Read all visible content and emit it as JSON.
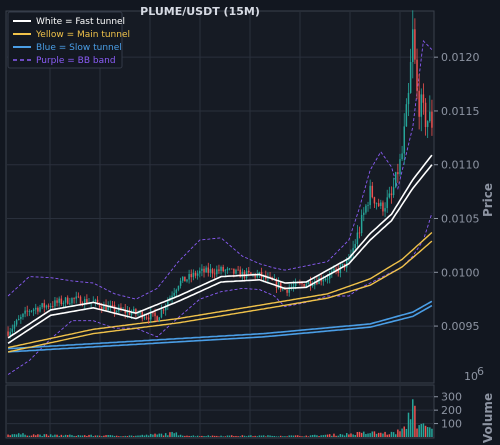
{
  "chart_data": {
    "type": "candlestick",
    "title": "PLUME/USDT (15M)",
    "price_axis": {
      "label": "Price",
      "ylim": [
        0.00898,
        0.01242
      ],
      "ticks": [
        0.0095,
        0.01,
        0.0105,
        0.011,
        0.0115,
        0.012
      ],
      "tick_labels": [
        "0.0095",
        "0.0100",
        "0.0105",
        "0.0110",
        "0.0115",
        "0.0120"
      ]
    },
    "volume_axis": {
      "label": "Volume",
      "multiplier": "10",
      "multiplier_exp": "6",
      "ylim": [
        0,
        380
      ],
      "ticks": [
        100,
        200,
        300
      ],
      "tick_labels": [
        "100",
        "200",
        "300"
      ]
    },
    "legend": {
      "placement": "top-left",
      "entries": [
        {
          "label": "White = Fast tunnel",
          "color": "#ffffff",
          "dashed": false
        },
        {
          "label": "Yellow = Main tunnel",
          "color": "#f0c24a",
          "dashed": false
        },
        {
          "label": "Blue = Slow tunnel",
          "color": "#4a9ee6",
          "dashed": false
        },
        {
          "label": "Purple = BB band",
          "color": "#8a5cf6",
          "dashed": true
        }
      ]
    },
    "colors": {
      "up": "#26a69a",
      "down": "#ef5350",
      "background": "#121720",
      "grid": "#2a303c"
    },
    "grid": true,
    "x_count": 200,
    "close_anchors": [
      [
        0,
        0.00945
      ],
      [
        10,
        0.00965
      ],
      [
        20,
        0.0097
      ],
      [
        30,
        0.00975
      ],
      [
        40,
        0.00972
      ],
      [
        50,
        0.00965
      ],
      [
        60,
        0.00962
      ],
      [
        70,
        0.00958
      ],
      [
        80,
        0.0099
      ],
      [
        90,
        0.01
      ],
      [
        100,
        0.01002
      ],
      [
        110,
        0.00998
      ],
      [
        118,
        0.00997
      ],
      [
        125,
        0.0099
      ],
      [
        130,
        0.00984
      ],
      [
        140,
        0.0099
      ],
      [
        150,
        0.00996
      ],
      [
        155,
        0.01002
      ],
      [
        160,
        0.0101
      ],
      [
        165,
        0.0104
      ],
      [
        170,
        0.01075
      ],
      [
        175,
        0.0106
      ],
      [
        180,
        0.0107
      ],
      [
        185,
        0.0111
      ],
      [
        188,
        0.0116
      ],
      [
        190,
        0.0122
      ],
      [
        192,
        0.01165
      ],
      [
        195,
        0.01145
      ],
      [
        199,
        0.0114
      ]
    ],
    "volume_anchors": [
      [
        0,
        25
      ],
      [
        20,
        15
      ],
      [
        60,
        10
      ],
      [
        78,
        30
      ],
      [
        85,
        10
      ],
      [
        140,
        10
      ],
      [
        155,
        20
      ],
      [
        170,
        35
      ],
      [
        180,
        30
      ],
      [
        186,
        60
      ],
      [
        188,
        150
      ],
      [
        190,
        330
      ],
      [
        192,
        120
      ],
      [
        195,
        80
      ],
      [
        199,
        60
      ]
    ],
    "fast_tunnel_upper": [
      [
        0,
        0.00939
      ],
      [
        20,
        0.00965
      ],
      [
        40,
        0.00972
      ],
      [
        60,
        0.00962
      ],
      [
        80,
        0.00978
      ],
      [
        100,
        0.00996
      ],
      [
        118,
        0.00998
      ],
      [
        130,
        0.0099
      ],
      [
        140,
        0.00991
      ],
      [
        160,
        0.01013
      ],
      [
        170,
        0.01036
      ],
      [
        180,
        0.01054
      ],
      [
        190,
        0.01086
      ],
      [
        199,
        0.01109
      ]
    ],
    "fast_tunnel_lower": [
      [
        0,
        0.00934
      ],
      [
        20,
        0.0096
      ],
      [
        40,
        0.00967
      ],
      [
        60,
        0.00957
      ],
      [
        80,
        0.00973
      ],
      [
        100,
        0.00991
      ],
      [
        118,
        0.00993
      ],
      [
        130,
        0.00985
      ],
      [
        140,
        0.00986
      ],
      [
        160,
        0.01008
      ],
      [
        170,
        0.0103
      ],
      [
        180,
        0.01048
      ],
      [
        190,
        0.01078
      ],
      [
        199,
        0.011
      ]
    ],
    "main_tunnel_upper": [
      [
        0,
        0.0093
      ],
      [
        40,
        0.00947
      ],
      [
        80,
        0.00957
      ],
      [
        120,
        0.0097
      ],
      [
        150,
        0.0098
      ],
      [
        170,
        0.00994
      ],
      [
        185,
        0.01012
      ],
      [
        199,
        0.01037
      ]
    ],
    "main_tunnel_lower": [
      [
        0,
        0.00926
      ],
      [
        40,
        0.00943
      ],
      [
        80,
        0.00953
      ],
      [
        120,
        0.00966
      ],
      [
        150,
        0.00976
      ],
      [
        170,
        0.00988
      ],
      [
        185,
        0.01005
      ],
      [
        199,
        0.01029
      ]
    ],
    "slow_tunnel_upper": [
      [
        0,
        0.00929
      ],
      [
        60,
        0.00936
      ],
      [
        120,
        0.00943
      ],
      [
        170,
        0.00952
      ],
      [
        190,
        0.00963
      ],
      [
        199,
        0.00973
      ]
    ],
    "slow_tunnel_lower": [
      [
        0,
        0.00926
      ],
      [
        60,
        0.00933
      ],
      [
        120,
        0.0094
      ],
      [
        170,
        0.00949
      ],
      [
        190,
        0.00959
      ],
      [
        199,
        0.00969
      ]
    ],
    "bb_upper": [
      [
        0,
        0.00978
      ],
      [
        10,
        0.00996
      ],
      [
        20,
        0.00995
      ],
      [
        30,
        0.00992
      ],
      [
        40,
        0.0099
      ],
      [
        50,
        0.0098
      ],
      [
        60,
        0.00975
      ],
      [
        70,
        0.00985
      ],
      [
        80,
        0.0101
      ],
      [
        90,
        0.0103
      ],
      [
        100,
        0.01032
      ],
      [
        110,
        0.01015
      ],
      [
        118,
        0.01008
      ],
      [
        125,
        0.01004
      ],
      [
        130,
        0.01002
      ],
      [
        140,
        0.01006
      ],
      [
        150,
        0.0101
      ],
      [
        160,
        0.0103
      ],
      [
        165,
        0.0106
      ],
      [
        170,
        0.01095
      ],
      [
        175,
        0.01112
      ],
      [
        180,
        0.01098
      ],
      [
        183,
        0.01078
      ],
      [
        190,
        0.01135
      ],
      [
        195,
        0.01215
      ],
      [
        199,
        0.01207
      ]
    ],
    "bb_lower": [
      [
        0,
        0.00905
      ],
      [
        10,
        0.00918
      ],
      [
        20,
        0.00938
      ],
      [
        30,
        0.00955
      ],
      [
        40,
        0.00955
      ],
      [
        50,
        0.00948
      ],
      [
        60,
        0.00948
      ],
      [
        70,
        0.0094
      ],
      [
        80,
        0.00958
      ],
      [
        90,
        0.00975
      ],
      [
        100,
        0.00982
      ],
      [
        110,
        0.00985
      ],
      [
        118,
        0.00984
      ],
      [
        125,
        0.00978
      ],
      [
        130,
        0.00968
      ],
      [
        140,
        0.00972
      ],
      [
        150,
        0.00978
      ],
      [
        160,
        0.00978
      ],
      [
        165,
        0.00985
      ],
      [
        170,
        0.0099
      ],
      [
        175,
        0.00995
      ],
      [
        180,
        0.01
      ],
      [
        185,
        0.01005
      ],
      [
        190,
        0.01015
      ],
      [
        195,
        0.0103
      ],
      [
        199,
        0.01055
      ]
    ]
  }
}
